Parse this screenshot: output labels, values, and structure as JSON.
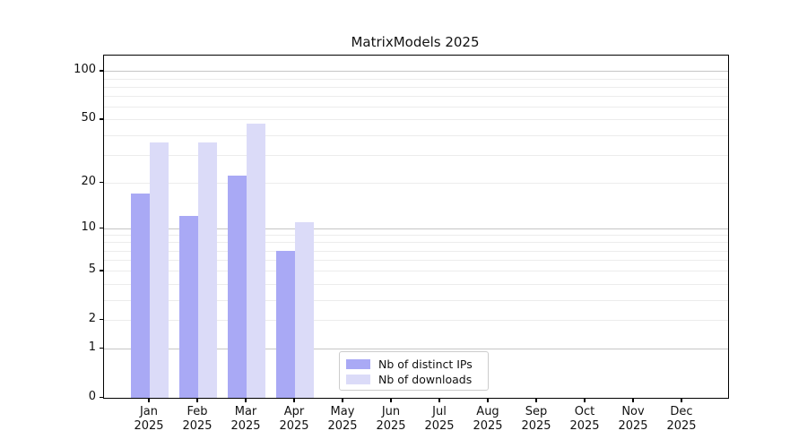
{
  "title": "MatrixModels 2025",
  "legend": {
    "items": [
      {
        "label": "Nb of distinct IPs"
      },
      {
        "label": "Nb of downloads"
      }
    ]
  },
  "chart_data": {
    "type": "bar",
    "title": "MatrixModels 2025",
    "categories": [
      "Jan",
      "Feb",
      "Mar",
      "Apr",
      "May",
      "Jun",
      "Jul",
      "Aug",
      "Sep",
      "Oct",
      "Nov",
      "Dec"
    ],
    "year_label": "2025",
    "series": [
      {
        "name": "Nb of distinct IPs",
        "color": "#a9a9f5",
        "values": [
          17,
          12,
          22,
          7,
          0,
          0,
          0,
          0,
          0,
          0,
          0,
          0
        ]
      },
      {
        "name": "Nb of downloads",
        "color": "#dbdbf8",
        "values": [
          36,
          36,
          47,
          11,
          0,
          0,
          0,
          0,
          0,
          0,
          0,
          0
        ]
      }
    ],
    "yscale": "log1p",
    "ylim": [
      0,
      125
    ],
    "yticks": [
      100,
      50,
      20,
      10,
      5,
      2,
      1,
      0
    ],
    "ytick_labels": [
      "100",
      "50",
      "20",
      "10",
      "5",
      "2",
      "1",
      "0"
    ],
    "major_gridlines": [
      1,
      10,
      100
    ],
    "minor_gridlines": [
      2,
      3,
      4,
      5,
      6,
      7,
      8,
      9,
      20,
      30,
      40,
      50,
      60,
      70,
      80,
      90
    ],
    "grid": "horizontal",
    "legend_position": "lower center-right",
    "xlabel": "",
    "ylabel": ""
  }
}
